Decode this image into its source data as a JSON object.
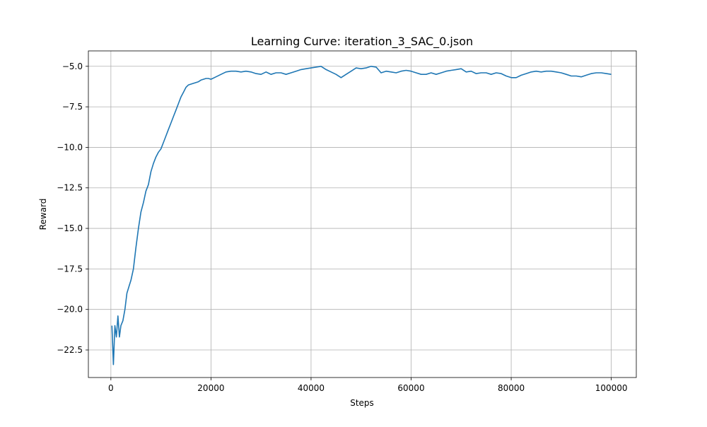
{
  "chart_data": {
    "type": "line",
    "title": "Learning Curve: iteration_3_SAC_0.json",
    "xlabel": "Steps",
    "ylabel": "Reward",
    "xlim": [
      -4500,
      105000
    ],
    "ylim": [
      -24.2,
      -4.05
    ],
    "xticks": [
      0,
      20000,
      40000,
      60000,
      80000,
      100000
    ],
    "yticks": [
      -22.5,
      -20.0,
      -17.5,
      -15.0,
      -12.5,
      -10.0,
      -7.5,
      -5.0
    ],
    "grid": true,
    "line_color": "#1f77b4",
    "series": [
      {
        "x": [
          200,
          500,
          800,
          1100,
          1400,
          1700,
          2000,
          2400,
          2800,
          3200,
          3600,
          4000,
          4500,
          5000,
          5500,
          6000,
          6500,
          7000,
          7500,
          8000,
          8500,
          9000,
          9500,
          10000,
          10500,
          11000,
          11500,
          12000,
          12500,
          13000,
          13500,
          14000,
          14500,
          15000,
          15500,
          16000,
          16500,
          17000,
          17500,
          18000,
          18500,
          19000,
          19500,
          20000,
          21000,
          22000,
          23000,
          24000,
          25000,
          26000,
          27000,
          28000,
          29000,
          30000,
          31000,
          32000,
          33000,
          34000,
          35000,
          36000,
          37000,
          38000,
          39000,
          40000,
          41000,
          42000,
          43000,
          44000,
          45000,
          46000,
          47000,
          48000,
          49000,
          50000,
          51000,
          52000,
          53000,
          54000,
          55000,
          56000,
          57000,
          58000,
          59000,
          60000,
          61000,
          62000,
          63000,
          64000,
          65000,
          66000,
          67000,
          68000,
          69000,
          70000,
          71000,
          72000,
          73000,
          74000,
          75000,
          76000,
          77000,
          78000,
          79000,
          80000,
          81000,
          82000,
          83000,
          84000,
          85000,
          86000,
          87000,
          88000,
          89000,
          90000,
          91000,
          92000,
          93000,
          94000,
          95000,
          96000,
          97000,
          98000,
          99000,
          100000
        ],
        "y": [
          -21.0,
          -23.4,
          -21.0,
          -21.7,
          -20.4,
          -21.7,
          -21.0,
          -20.7,
          -20.0,
          -19.0,
          -18.6,
          -18.2,
          -17.5,
          -16.2,
          -15.0,
          -14.0,
          -13.4,
          -12.7,
          -12.3,
          -11.5,
          -11.0,
          -10.6,
          -10.3,
          -10.1,
          -9.7,
          -9.3,
          -8.9,
          -8.5,
          -8.1,
          -7.7,
          -7.3,
          -6.9,
          -6.6,
          -6.3,
          -6.15,
          -6.1,
          -6.05,
          -6.0,
          -5.95,
          -5.85,
          -5.8,
          -5.75,
          -5.75,
          -5.8,
          -5.65,
          -5.5,
          -5.35,
          -5.3,
          -5.3,
          -5.35,
          -5.3,
          -5.35,
          -5.45,
          -5.5,
          -5.35,
          -5.5,
          -5.4,
          -5.4,
          -5.5,
          -5.4,
          -5.3,
          -5.2,
          -5.15,
          -5.1,
          -5.05,
          -5.0,
          -5.2,
          -5.35,
          -5.5,
          -5.7,
          -5.5,
          -5.3,
          -5.1,
          -5.15,
          -5.1,
          -5.0,
          -5.05,
          -5.4,
          -5.3,
          -5.35,
          -5.4,
          -5.3,
          -5.25,
          -5.3,
          -5.4,
          -5.5,
          -5.5,
          -5.4,
          -5.5,
          -5.4,
          -5.3,
          -5.25,
          -5.2,
          -5.15,
          -5.35,
          -5.3,
          -5.45,
          -5.4,
          -5.4,
          -5.5,
          -5.4,
          -5.45,
          -5.6,
          -5.7,
          -5.7,
          -5.55,
          -5.45,
          -5.35,
          -5.3,
          -5.35,
          -5.3,
          -5.3,
          -5.35,
          -5.4,
          -5.5,
          -5.6,
          -5.6,
          -5.65,
          -5.55,
          -5.45,
          -5.4,
          -5.4,
          -5.45,
          -5.5
        ]
      }
    ]
  }
}
